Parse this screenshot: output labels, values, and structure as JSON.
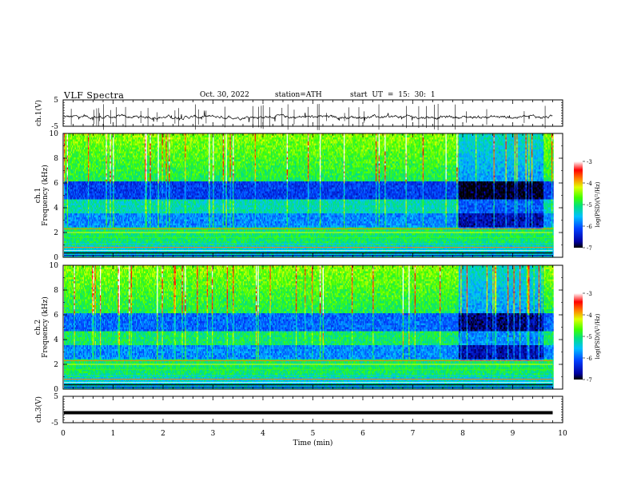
{
  "header": {
    "title": "VLF  Spectra",
    "date": "Oct. 30, 2022",
    "station": "station=ATH",
    "start_ut": "start  UT  =    15: 30: 1"
  },
  "chart_data": [
    {
      "type": "line",
      "name": "ch1-waveform",
      "ylabel": "ch.1(V)",
      "ylim": [
        -5,
        5
      ],
      "yticks": [
        "5",
        "-5"
      ],
      "xlim": [
        0,
        10
      ],
      "baseline_v": -1.5,
      "data_end_min": 9.8
    },
    {
      "type": "heatmap",
      "name": "ch1-spectrogram",
      "ylabel": "Frequency (kHz)",
      "channel_label": "ch.1",
      "ylim": [
        0,
        10
      ],
      "yticks": [
        "0",
        "2",
        "4",
        "6",
        "8",
        "10"
      ],
      "xlim": [
        0,
        10
      ],
      "data_end_min": 9.8,
      "colorbar": {
        "label": "log(PSD)(V²/Hz)",
        "range": [
          -7,
          -3
        ],
        "ticks": [
          "-3",
          "-4",
          "-5",
          "-6",
          "-7"
        ]
      }
    },
    {
      "type": "heatmap",
      "name": "ch2-spectrogram",
      "ylabel": "Frequency (kHz)",
      "channel_label": "ch.2",
      "ylim": [
        0,
        10
      ],
      "yticks": [
        "0",
        "2",
        "4",
        "6",
        "8",
        "10"
      ],
      "xlim": [
        0,
        10
      ],
      "data_end_min": 9.8,
      "colorbar": {
        "label": "log(PSD)(V²/Hz)",
        "range": [
          -7,
          -3
        ],
        "ticks": [
          "-3",
          "-4",
          "-5",
          "-6",
          "-7"
        ]
      }
    },
    {
      "type": "line",
      "name": "ch3-waveform",
      "ylabel": "ch.3(V)",
      "ylim": [
        -5,
        5
      ],
      "yticks": [
        "5",
        "-5"
      ],
      "xlim": [
        0,
        10
      ],
      "baseline_v": -1.2,
      "data_end_min": 9.8,
      "xlabel": "Time  (min)",
      "xticks": [
        "0",
        "1",
        "2",
        "3",
        "4",
        "5",
        "6",
        "7",
        "8",
        "9",
        "10"
      ]
    }
  ]
}
